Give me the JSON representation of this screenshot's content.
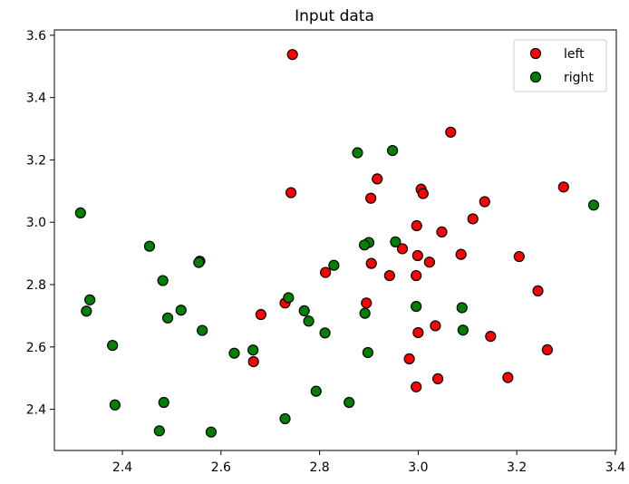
{
  "chart_data": {
    "type": "scatter",
    "title": "Input data",
    "xlabel": "",
    "ylabel": "",
    "xlim": [
      2.262,
      3.402
    ],
    "ylim": [
      2.268,
      3.617
    ],
    "xticks": [
      2.4,
      2.6,
      2.8,
      3.0,
      3.2,
      3.4
    ],
    "yticks": [
      2.4,
      2.6,
      2.8,
      3.0,
      3.2,
      3.4,
      3.6
    ],
    "xtick_labels": [
      "2.4",
      "2.6",
      "2.8",
      "3.0",
      "3.2",
      "3.4"
    ],
    "ytick_labels": [
      "2.4",
      "2.6",
      "2.8",
      "3.0",
      "3.2",
      "3.4",
      "3.6"
    ],
    "grid": false,
    "legend": "top-right",
    "series": [
      {
        "name": "left",
        "color": "#ff0000",
        "points": [
          [
            2.745,
            3.538
          ],
          [
            2.742,
            3.095
          ],
          [
            3.066,
            3.289
          ],
          [
            2.917,
            3.139
          ],
          [
            3.006,
            3.106
          ],
          [
            3.01,
            3.092
          ],
          [
            2.904,
            3.077
          ],
          [
            3.295,
            3.113
          ],
          [
            3.135,
            3.066
          ],
          [
            3.111,
            3.011
          ],
          [
            2.997,
            2.989
          ],
          [
            3.048,
            2.969
          ],
          [
            2.968,
            2.915
          ],
          [
            2.999,
            2.893
          ],
          [
            3.087,
            2.897
          ],
          [
            3.205,
            2.89
          ],
          [
            3.023,
            2.872
          ],
          [
            2.905,
            2.868
          ],
          [
            2.812,
            2.839
          ],
          [
            2.942,
            2.829
          ],
          [
            2.996,
            2.829
          ],
          [
            3.243,
            2.78
          ],
          [
            2.73,
            2.741
          ],
          [
            2.895,
            2.741
          ],
          [
            2.681,
            2.704
          ],
          [
            3.035,
            2.668
          ],
          [
            3.0,
            2.646
          ],
          [
            3.147,
            2.634
          ],
          [
            3.262,
            2.591
          ],
          [
            2.666,
            2.553
          ],
          [
            2.982,
            2.562
          ],
          [
            3.182,
            2.502
          ],
          [
            3.04,
            2.498
          ],
          [
            2.996,
            2.472
          ]
        ]
      },
      {
        "name": "right",
        "color": "#008000",
        "points": [
          [
            2.315,
            3.03
          ],
          [
            2.877,
            3.223
          ],
          [
            2.948,
            3.23
          ],
          [
            3.356,
            3.055
          ],
          [
            2.455,
            2.923
          ],
          [
            2.954,
            2.937
          ],
          [
            2.9,
            2.935
          ],
          [
            2.891,
            2.927
          ],
          [
            2.557,
            2.875
          ],
          [
            2.555,
            2.871
          ],
          [
            2.829,
            2.862
          ],
          [
            2.482,
            2.813
          ],
          [
            2.334,
            2.751
          ],
          [
            2.737,
            2.758
          ],
          [
            3.089,
            2.726
          ],
          [
            2.996,
            2.73
          ],
          [
            2.327,
            2.715
          ],
          [
            2.519,
            2.718
          ],
          [
            2.769,
            2.716
          ],
          [
            2.892,
            2.708
          ],
          [
            2.492,
            2.693
          ],
          [
            2.778,
            2.683
          ],
          [
            2.562,
            2.653
          ],
          [
            2.811,
            2.645
          ],
          [
            3.091,
            2.654
          ],
          [
            2.38,
            2.605
          ],
          [
            2.665,
            2.59
          ],
          [
            2.627,
            2.58
          ],
          [
            2.898,
            2.582
          ],
          [
            2.793,
            2.458
          ],
          [
            2.385,
            2.414
          ],
          [
            2.484,
            2.422
          ],
          [
            2.86,
            2.422
          ],
          [
            2.73,
            2.37
          ],
          [
            2.475,
            2.331
          ],
          [
            2.58,
            2.327
          ]
        ]
      }
    ]
  }
}
